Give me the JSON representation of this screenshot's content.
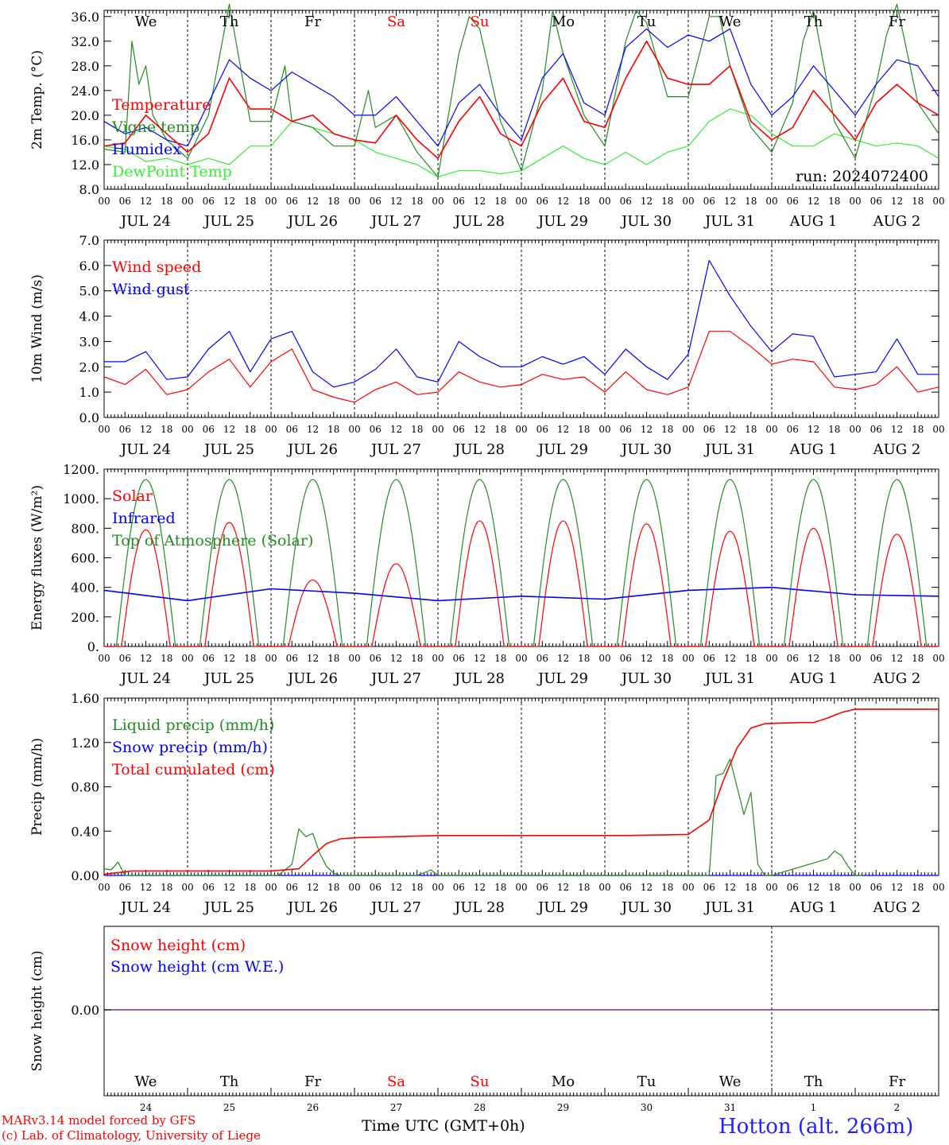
{
  "footer": {
    "model": "MARv3.14 model forced by GFS",
    "credit": "(c) Lab. of Climatology, University of Liege",
    "time_label": "Time UTC (GMT+0h)",
    "location": "Hotton (alt. 266m)"
  },
  "colors": {
    "temperature": "#ff0000",
    "vigne": "#228b22",
    "humidex": "#0000ff",
    "dewpoint": "#33ee33",
    "snow_line": "#7b2fa0",
    "weekend": "#ff0000"
  },
  "x_axis": {
    "days": [
      "JUL 24",
      "JUL 25",
      "JUL 26",
      "JUL 27",
      "JUL 28",
      "JUL 29",
      "JUL 30",
      "JUL 31",
      "AUG  1",
      "AUG  2"
    ],
    "hour_labels": [
      "00",
      "06",
      "12",
      "18"
    ],
    "end_label": "00",
    "day_of_week": [
      "We",
      "Th",
      "Fr",
      "Sa",
      "Su",
      "Mo",
      "Tu",
      "We",
      "Th",
      "Fr"
    ],
    "weekend_index": [
      3,
      4
    ],
    "day_numbers": [
      "24",
      "25",
      "26",
      "27",
      "28",
      "29",
      "30",
      "31",
      "1",
      "2"
    ]
  },
  "chart_data": [
    {
      "type": "line",
      "id": "temperature",
      "ylabel": "2m Temp. (°C)",
      "ylim": [
        8,
        37
      ],
      "yticks": [
        "8.0",
        "12.0",
        "16.0",
        "20.0",
        "24.0",
        "28.0",
        "32.0",
        "36.0"
      ],
      "annotation": "run: 2024072400",
      "x_unit": "hours since JUL 24 00 UTC",
      "series": [
        {
          "name": "Temperature",
          "color": "#ff0000",
          "x": [
            0,
            6,
            12,
            18,
            24,
            30,
            36,
            42,
            48,
            54,
            60,
            66,
            72,
            78,
            84,
            90,
            96,
            102,
            108,
            114,
            120,
            126,
            132,
            138,
            144,
            150,
            156,
            162,
            168,
            174,
            180,
            186,
            192,
            198,
            204,
            210,
            216,
            222,
            228,
            234,
            240
          ],
          "values": [
            15,
            15.5,
            20,
            17,
            14,
            17,
            26,
            21,
            21,
            19,
            20,
            17,
            16,
            15.5,
            20,
            16,
            13,
            19,
            23,
            17,
            15,
            22,
            26,
            19,
            18,
            26,
            32,
            26,
            25,
            25,
            28,
            19,
            16,
            18,
            24,
            20,
            16,
            22,
            25,
            22,
            20
          ]
        },
        {
          "name": "Vigne temp",
          "color": "#228b22",
          "x": [
            0,
            6,
            8,
            10,
            12,
            14,
            18,
            24,
            30,
            36,
            42,
            48,
            52,
            54,
            60,
            66,
            72,
            76,
            78,
            84,
            90,
            96,
            102,
            105,
            108,
            114,
            120,
            126,
            129,
            132,
            138,
            144,
            150,
            153,
            156,
            162,
            168,
            174,
            177,
            180,
            186,
            192,
            198,
            201,
            204,
            210,
            216,
            222,
            225,
            228,
            234,
            240
          ],
          "values": [
            14.5,
            14,
            32,
            25,
            28,
            20,
            16,
            13,
            20,
            38,
            19,
            19,
            28,
            19,
            18,
            15,
            15,
            24,
            18,
            20,
            14,
            10,
            30,
            36,
            34,
            19,
            11,
            24,
            37,
            30,
            20,
            15,
            32,
            37,
            35,
            23,
            23,
            36,
            36,
            28,
            18,
            14,
            22,
            32,
            37,
            19,
            13,
            25,
            33,
            38,
            22,
            17
          ]
        },
        {
          "name": "Humidex",
          "color": "#0000ff",
          "x": [
            0,
            6,
            12,
            18,
            24,
            30,
            36,
            42,
            48,
            54,
            60,
            66,
            72,
            78,
            84,
            90,
            96,
            102,
            108,
            114,
            120,
            126,
            132,
            138,
            144,
            150,
            156,
            162,
            168,
            174,
            180,
            186,
            192,
            198,
            204,
            210,
            216,
            222,
            228,
            234,
            240
          ],
          "values": [
            19,
            17,
            18,
            16,
            15,
            22,
            29,
            26,
            24,
            27,
            25,
            23,
            20,
            20,
            23,
            19,
            15,
            22,
            25,
            20,
            16,
            26,
            30,
            22,
            20,
            31,
            34,
            31,
            33,
            32,
            34,
            25,
            20,
            23,
            28,
            24,
            20,
            25,
            29,
            28,
            23
          ]
        },
        {
          "name": "DewPoint Temp",
          "color": "#33ee33",
          "x": [
            0,
            6,
            12,
            18,
            24,
            30,
            36,
            42,
            48,
            54,
            60,
            66,
            72,
            78,
            84,
            90,
            96,
            102,
            108,
            114,
            120,
            126,
            132,
            138,
            144,
            150,
            156,
            162,
            168,
            174,
            180,
            186,
            192,
            198,
            204,
            210,
            216,
            222,
            228,
            234,
            240
          ],
          "values": [
            15,
            14.5,
            12.5,
            13,
            12,
            13,
            12,
            15,
            15,
            19,
            18,
            17,
            16,
            14,
            13,
            12,
            10,
            11,
            11,
            10.5,
            11,
            13,
            15,
            13,
            12,
            14,
            12,
            14,
            15,
            19,
            21,
            20,
            17,
            15,
            15,
            17,
            16,
            15,
            15.5,
            15,
            13
          ]
        }
      ]
    },
    {
      "type": "line",
      "id": "wind",
      "ylabel": "10m Wind (m/s)",
      "ylim": [
        0,
        7
      ],
      "yticks": [
        "0.0",
        "1.0",
        "2.0",
        "3.0",
        "4.0",
        "5.0",
        "6.0",
        "7.0"
      ],
      "hline": 5,
      "x_unit": "hours since JUL 24 00 UTC",
      "series": [
        {
          "name": "Wind speed",
          "color": "#ff0000",
          "x": [
            0,
            6,
            12,
            18,
            24,
            30,
            36,
            42,
            48,
            54,
            60,
            66,
            72,
            78,
            84,
            90,
            96,
            102,
            108,
            114,
            120,
            126,
            132,
            138,
            144,
            150,
            156,
            162,
            168,
            174,
            180,
            186,
            192,
            198,
            204,
            210,
            216,
            222,
            228,
            234,
            240
          ],
          "values": [
            1.6,
            1.3,
            1.9,
            0.9,
            1.1,
            1.8,
            2.3,
            1.2,
            2.2,
            2.7,
            1.1,
            0.8,
            0.6,
            1.1,
            1.4,
            0.9,
            1.0,
            1.8,
            1.4,
            1.2,
            1.3,
            1.7,
            1.5,
            1.6,
            1.0,
            1.8,
            1.1,
            0.9,
            1.2,
            3.4,
            3.4,
            2.8,
            2.1,
            2.3,
            2.2,
            1.2,
            1.1,
            1.3,
            2.0,
            1.0,
            1.2
          ]
        },
        {
          "name": "Wind gust",
          "color": "#0000ff",
          "x": [
            0,
            6,
            12,
            18,
            24,
            30,
            36,
            42,
            48,
            54,
            60,
            66,
            72,
            78,
            84,
            90,
            96,
            102,
            108,
            114,
            120,
            126,
            132,
            138,
            144,
            150,
            156,
            162,
            168,
            174,
            180,
            186,
            192,
            198,
            204,
            210,
            216,
            222,
            228,
            234,
            240
          ],
          "values": [
            2.2,
            2.2,
            2.6,
            1.5,
            1.6,
            2.7,
            3.4,
            1.8,
            3.1,
            3.4,
            1.8,
            1.2,
            1.4,
            1.9,
            2.7,
            1.6,
            1.4,
            3.0,
            2.4,
            2.0,
            2.0,
            2.4,
            2.1,
            2.4,
            1.7,
            2.7,
            2.0,
            1.5,
            2.5,
            6.2,
            4.8,
            3.6,
            2.6,
            3.3,
            3.2,
            1.6,
            1.7,
            1.8,
            3.1,
            1.7,
            1.7
          ]
        }
      ]
    },
    {
      "type": "line",
      "id": "energy",
      "ylabel": "Energy fluxes (W/m²)",
      "ylim": [
        0,
        1200
      ],
      "yticks": [
        "0.",
        "200.",
        "400.",
        "600.",
        "800.",
        "1000.",
        "1200."
      ],
      "x_unit": "hours since JUL 24 00 UTC",
      "series": [
        {
          "name": "Solar",
          "color": "#ff0000",
          "peaks": [
            790,
            840,
            450,
            560,
            850,
            850,
            830,
            780,
            800,
            760
          ]
        },
        {
          "name": "Infrared",
          "color": "#0000ff",
          "x": [
            0,
            24,
            48,
            72,
            96,
            120,
            144,
            168,
            192,
            216,
            240
          ],
          "values": [
            380,
            310,
            390,
            360,
            310,
            340,
            320,
            380,
            400,
            350,
            340
          ]
        },
        {
          "name": "Top of Atmosphere (Solar)",
          "color": "#228b22",
          "peak": 1130
        }
      ]
    },
    {
      "type": "line",
      "id": "precip",
      "ylabel": "Precip (mm/h)",
      "ylim": [
        0,
        1.6
      ],
      "yticks": [
        "0.00",
        "0.40",
        "0.80",
        "1.20",
        "1.60"
      ],
      "x_unit": "hours since JUL 24 00 UTC",
      "series": [
        {
          "name": "Liquid precip (mm/h)",
          "color": "#228b22",
          "x": [
            0,
            2,
            4,
            6,
            8,
            50,
            54,
            56,
            58,
            60,
            62,
            64,
            66,
            68,
            70,
            72,
            90,
            94,
            96,
            168,
            174,
            176,
            178,
            180,
            182,
            184,
            186,
            188,
            190,
            192,
            208,
            210,
            212,
            214,
            216,
            218
          ],
          "values": [
            0.06,
            0.05,
            0.12,
            0,
            0,
            0,
            0.1,
            0.42,
            0.35,
            0.38,
            0.2,
            0.08,
            0.02,
            0,
            0,
            0,
            0,
            0.05,
            0,
            0,
            0,
            0.9,
            0.92,
            1.05,
            0.8,
            0.55,
            0.75,
            0.1,
            0,
            0,
            0.15,
            0.22,
            0.18,
            0.08,
            0,
            0
          ]
        },
        {
          "name": "Snow precip (mm/h)",
          "color": "#0000ff",
          "x": [
            0,
            240
          ],
          "values": [
            0,
            0
          ]
        },
        {
          "name": "Total cumulated (cm)",
          "color": "#ff0000",
          "x": [
            0,
            8,
            24,
            48,
            56,
            60,
            64,
            68,
            72,
            84,
            96,
            120,
            150,
            168,
            174,
            178,
            182,
            186,
            190,
            200,
            204,
            208,
            212,
            216,
            240
          ],
          "values": [
            0.01,
            0.04,
            0.04,
            0.04,
            0.06,
            0.18,
            0.29,
            0.33,
            0.34,
            0.35,
            0.36,
            0.36,
            0.36,
            0.37,
            0.5,
            0.85,
            1.15,
            1.33,
            1.37,
            1.38,
            1.38,
            1.42,
            1.47,
            1.5,
            1.5
          ]
        }
      ]
    },
    {
      "type": "line",
      "id": "snow",
      "ylabel": "Snow height (cm)",
      "yticks": [
        "0.00"
      ],
      "series": [
        {
          "name": "Snow height (cm)",
          "color": "#ff0000",
          "x": [
            0,
            240
          ],
          "values": [
            0,
            0
          ]
        },
        {
          "name": "Snow height (cm W.E.)",
          "color": "#0000ff",
          "x": [
            0,
            240
          ],
          "values": [
            0,
            0
          ]
        }
      ]
    }
  ]
}
